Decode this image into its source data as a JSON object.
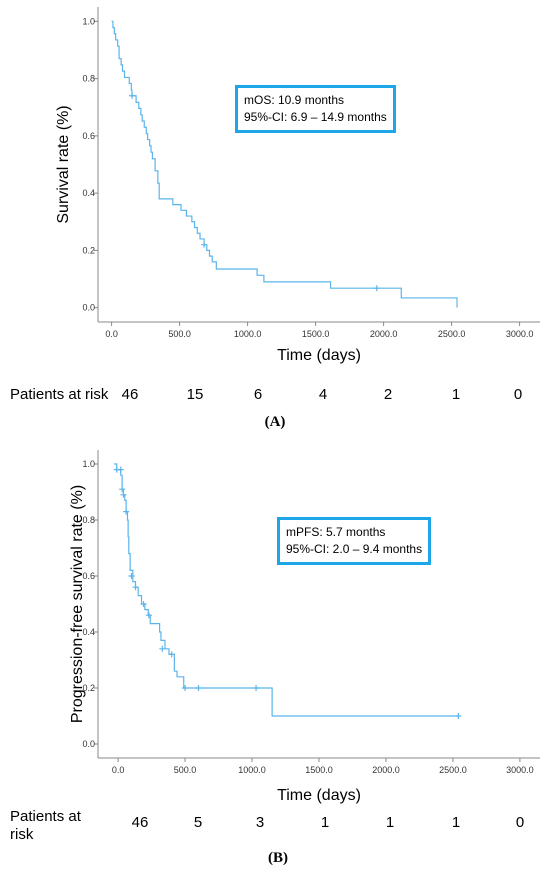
{
  "chart_data": [
    {
      "type": "line",
      "panel_label": "(A)",
      "xlabel": "Time (days)",
      "ylabel": "Survival rate (%)",
      "xlim": [
        -100,
        3150
      ],
      "ylim": [
        -0.05,
        1.05
      ],
      "x_ticks": [
        0,
        500,
        1000,
        1500,
        2000,
        2500,
        3000
      ],
      "x_tick_labels": [
        "0.0",
        "500.0",
        "1000.0",
        "1500.0",
        "2000.0",
        "2500.0",
        "3000.0"
      ],
      "y_ticks": [
        0,
        0.2,
        0.4,
        0.6,
        0.8,
        1.0
      ],
      "y_tick_labels": [
        "0.0",
        "0.2",
        "0.4",
        "0.6",
        "0.8",
        "1.0"
      ],
      "color": "#5bb5ec",
      "annotation": [
        "mOS: 10.9 months",
        "95%-CI: 6.9 – 14.9 months"
      ],
      "series": [
        {
          "points": [
            [
              0,
              1.0
            ],
            [
              10,
              0.978
            ],
            [
              20,
              0.957
            ],
            [
              30,
              0.935
            ],
            [
              45,
              0.913
            ],
            [
              55,
              0.87
            ],
            [
              70,
              0.848
            ],
            [
              80,
              0.826
            ],
            [
              95,
              0.804
            ],
            [
              130,
              0.783
            ],
            [
              145,
              0.76
            ],
            [
              150,
              0.74
            ],
            [
              180,
              0.717
            ],
            [
              200,
              0.696
            ],
            [
              215,
              0.674
            ],
            [
              225,
              0.652
            ],
            [
              240,
              0.63
            ],
            [
              255,
              0.608
            ],
            [
              265,
              0.587
            ],
            [
              280,
              0.565
            ],
            [
              290,
              0.543
            ],
            [
              300,
              0.52
            ],
            [
              320,
              0.478
            ],
            [
              340,
              0.435
            ],
            [
              350,
              0.38
            ],
            [
              430,
              0.38
            ],
            [
              450,
              0.36
            ],
            [
              510,
              0.34
            ],
            [
              550,
              0.32
            ],
            [
              590,
              0.3
            ],
            [
              610,
              0.28
            ],
            [
              630,
              0.26
            ],
            [
              650,
              0.24
            ],
            [
              680,
              0.22
            ],
            [
              700,
              0.2
            ],
            [
              720,
              0.18
            ],
            [
              740,
              0.16
            ],
            [
              770,
              0.135
            ],
            [
              1050,
              0.135
            ],
            [
              1070,
              0.113
            ],
            [
              1120,
              0.09
            ],
            [
              1600,
              0.09
            ],
            [
              1610,
              0.068
            ],
            [
              2100,
              0.068
            ],
            [
              2130,
              0.034
            ],
            [
              2540,
              0.034
            ],
            [
              2540,
              0.0
            ]
          ],
          "censored": [
            [
              150,
              0.74
            ],
            [
              680,
              0.22
            ],
            [
              1950,
              0.068
            ]
          ]
        }
      ],
      "risk_title": "Patients at risk",
      "risk_values": [
        "46",
        "15",
        "6",
        "4",
        "2",
        "1",
        "0"
      ]
    },
    {
      "type": "line",
      "panel_label": "(B)",
      "xlabel": "Time (days)",
      "ylabel": "Progression-free survival rate (%)",
      "xlim": [
        -150,
        3150
      ],
      "ylim": [
        -0.05,
        1.05
      ],
      "x_ticks": [
        0,
        500,
        1000,
        1500,
        2000,
        2500,
        3000
      ],
      "x_tick_labels": [
        "0.0",
        "500.0",
        "1000.0",
        "1500.0",
        "2000.0",
        "2500.0",
        "3000.0"
      ],
      "y_ticks": [
        0,
        0.2,
        0.4,
        0.6,
        0.8,
        1.0
      ],
      "y_tick_labels": [
        "0.0",
        "0.2",
        "0.4",
        "0.6",
        "0.8",
        "1.0"
      ],
      "color": "#5bb5ec",
      "annotation": [
        "mPFS: 5.7 months",
        "95%-CI: 2.0 – 9.4 months"
      ],
      "series": [
        {
          "points": [
            [
              -30,
              1.0
            ],
            [
              -10,
              0.98
            ],
            [
              20,
              0.96
            ],
            [
              30,
              0.91
            ],
            [
              40,
              0.89
            ],
            [
              50,
              0.87
            ],
            [
              60,
              0.83
            ],
            [
              70,
              0.8
            ],
            [
              75,
              0.74
            ],
            [
              80,
              0.68
            ],
            [
              90,
              0.62
            ],
            [
              110,
              0.58
            ],
            [
              130,
              0.56
            ],
            [
              150,
              0.53
            ],
            [
              175,
              0.5
            ],
            [
              200,
              0.48
            ],
            [
              225,
              0.46
            ],
            [
              240,
              0.43
            ],
            [
              300,
              0.43
            ],
            [
              310,
              0.4
            ],
            [
              320,
              0.37
            ],
            [
              350,
              0.34
            ],
            [
              380,
              0.32
            ],
            [
              410,
              0.32
            ],
            [
              420,
              0.26
            ],
            [
              440,
              0.24
            ],
            [
              480,
              0.24
            ],
            [
              490,
              0.2
            ],
            [
              1150,
              0.2
            ],
            [
              1150,
              0.1
            ],
            [
              2540,
              0.1
            ]
          ],
          "censored": [
            [
              -10,
              0.98
            ],
            [
              20,
              0.98
            ],
            [
              30,
              0.91
            ],
            [
              40,
              0.89
            ],
            [
              60,
              0.83
            ],
            [
              100,
              0.6
            ],
            [
              130,
              0.56
            ],
            [
              190,
              0.5
            ],
            [
              230,
              0.46
            ],
            [
              330,
              0.34
            ],
            [
              400,
              0.32
            ],
            [
              500,
              0.2
            ],
            [
              600,
              0.2
            ],
            [
              1030,
              0.2
            ],
            [
              2540,
              0.1
            ]
          ]
        }
      ],
      "risk_title": "Patients at\nrisk",
      "risk_values": [
        "46",
        "5",
        "3",
        "1",
        "1",
        "1",
        "0"
      ]
    }
  ]
}
